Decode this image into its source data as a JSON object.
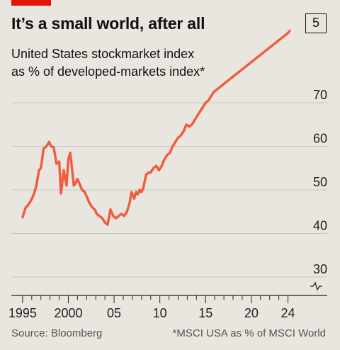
{
  "header": {
    "title": "It’s a small world, after all",
    "badge": "5",
    "subtitle_line1": "United States stockmarket index",
    "subtitle_line2": "as % of developed-markets index*",
    "accent_color": "#e3120b"
  },
  "footer": {
    "source": "Source: Bloomberg",
    "note": "*MSCI USA as % of MSCI World"
  },
  "chart_data": {
    "type": "line",
    "title": "It’s a small world, after all",
    "subtitle": "United States stockmarket index as % of developed-markets index*",
    "xlabel": "",
    "ylabel": "",
    "xlim": [
      1994.7,
      2024.5
    ],
    "ylim": [
      30,
      70
    ],
    "y_axis_broken": true,
    "x_ticks": [
      1995,
      1996,
      1997,
      1998,
      1999,
      2000,
      2001,
      2002,
      2003,
      2004,
      2005,
      2006,
      2007,
      2008,
      2009,
      2010,
      2011,
      2012,
      2013,
      2014,
      2015,
      2016,
      2017,
      2018,
      2019,
      2020,
      2021,
      2022,
      2023,
      2024
    ],
    "x_tick_labels": [
      {
        "x": 1995,
        "label": "1995"
      },
      {
        "x": 2000,
        "label": "2000"
      },
      {
        "x": 2005,
        "label": "05"
      },
      {
        "x": 2010,
        "label": "10"
      },
      {
        "x": 2015,
        "label": "15"
      },
      {
        "x": 2020,
        "label": "20"
      },
      {
        "x": 2024,
        "label": "24"
      }
    ],
    "y_ticks": [
      30,
      40,
      50,
      60,
      70
    ],
    "grid": true,
    "line_color": "#f15a3c",
    "series": [
      {
        "x": [
          1995.0,
          1995.3,
          1995.6,
          1995.9,
          1996.2,
          1996.5,
          1996.8,
          1997.0,
          1997.3,
          1997.6,
          1997.9,
          1998.1,
          1998.4,
          1998.7,
          1999.0,
          1999.2,
          1999.5,
          1999.8,
          2000.0,
          2000.2,
          2000.4,
          2000.6,
          2000.8,
          2001.0,
          2001.3,
          2001.5,
          2001.8,
          2002.0,
          2002.3,
          2002.6,
          2002.9,
          2003.1,
          2003.4,
          2003.7,
          2004.0,
          2004.3,
          2004.6,
          2004.9,
          2005.2,
          2005.5,
          2005.8,
          2006.1,
          2006.4,
          2006.7,
          2006.9,
          2007.2,
          2007.4,
          2007.6,
          2007.8,
          2008.0,
          2008.2,
          2008.5,
          2008.8,
          2009.0,
          2009.3,
          2009.6,
          2009.9,
          2010.2,
          2010.5,
          2010.8,
          2011.1,
          2011.4,
          2011.7,
          2012.0,
          2012.3,
          2012.6,
          2012.9,
          2013.2,
          2013.5,
          2013.8,
          2014.1,
          2014.4,
          2014.7,
          2015.0,
          2015.3,
          2015.6,
          2015.9,
          2016.2,
          2016.5,
          2016.8,
          2017.1,
          2017.4,
          2017.7,
          2018.0,
          2018.3,
          2018.6,
          2018.9,
          2019.2,
          2019.5,
          2019.8,
          2020.1,
          2020.4,
          2020.7,
          2021.0,
          2021.3,
          2021.6,
          2021.9,
          2022.2,
          2022.5,
          2022.8,
          2023.1,
          2023.4,
          2023.7,
          2024.0,
          2024.2
        ],
        "values": [
          43.7,
          45.8,
          46.5,
          47.5,
          48.8,
          51.0,
          54.5,
          55.0,
          59.5,
          60.0,
          61.0,
          60.0,
          59.8,
          56.0,
          56.5,
          49.2,
          54.5,
          51.0,
          57.0,
          58.5,
          55.0,
          51.0,
          51.5,
          52.5,
          51.0,
          50.0,
          49.5,
          48.5,
          47.0,
          46.0,
          45.5,
          44.5,
          44.0,
          43.5,
          42.5,
          42.0,
          45.5,
          44.0,
          43.5,
          44.0,
          44.5,
          44.0,
          45.0,
          47.0,
          49.5,
          48.0,
          49.5,
          49.0,
          50.0,
          49.5,
          50.5,
          53.5,
          54.0,
          54.0,
          55.0,
          55.5,
          54.5,
          55.5,
          57.0,
          58.0,
          58.5,
          60.0,
          61.0,
          62.0,
          62.5,
          63.5,
          65.0,
          64.5,
          65.0,
          66.0,
          67.0,
          68.0,
          69.0,
          70.0,
          70.5,
          71.5,
          72.5,
          73.0,
          73.5,
          74.0,
          74.5,
          75.0,
          75.5,
          76.0,
          76.5,
          77.0,
          77.5,
          78.0,
          78.5,
          79.0,
          79.5,
          80.0,
          80.5,
          81.0,
          81.5,
          82.0,
          82.5,
          83.0,
          83.5,
          84.0,
          84.5,
          85.0,
          85.5,
          86.0,
          86.5
        ]
      }
    ]
  }
}
